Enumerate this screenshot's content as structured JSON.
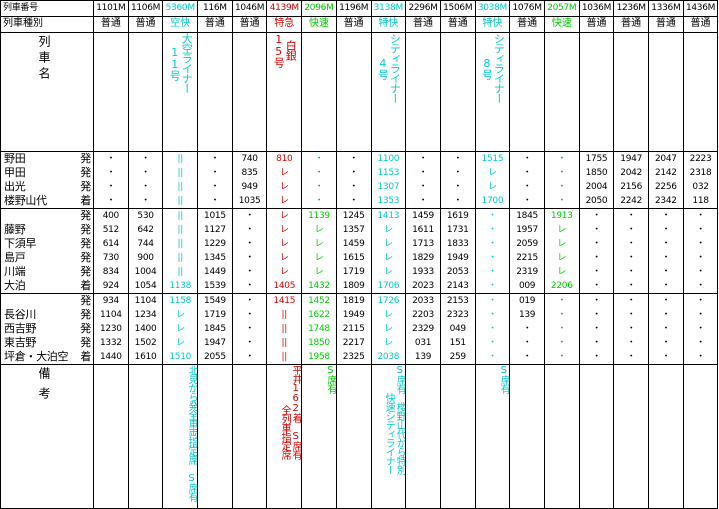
{
  "labels": {
    "train_number": "列車番号",
    "train_type": "列車種別",
    "train_name": "列車名",
    "remarks": "備考"
  },
  "colors": {
    "cyan": "#00cccc",
    "red": "#e00000",
    "green": "#00cc00",
    "black": "#000000"
  },
  "trains": [
    {
      "number": "1101M",
      "type": "普通",
      "name": "",
      "color": "black",
      "remarks": "",
      "b1": [
        "・",
        "・",
        "・",
        "・"
      ],
      "b2": [
        "400",
        "512",
        "614",
        "730",
        "834",
        "924"
      ],
      "b3": [
        "934",
        "1104",
        "1230",
        "1332",
        "1440"
      ]
    },
    {
      "number": "1106M",
      "type": "普通",
      "name": "",
      "color": "black",
      "remarks": "",
      "b1": [
        "・",
        "・",
        "・",
        "・"
      ],
      "b2": [
        "530",
        "642",
        "744",
        "900",
        "1004",
        "1054"
      ],
      "b3": [
        "1104",
        "1234",
        "1400",
        "1502",
        "1610"
      ]
    },
    {
      "number": "5360M",
      "type": "空快",
      "name": "大空ライナー\n11号",
      "color": "cyan",
      "remarks": "北見から発全車両指定席　S席有",
      "b1": [
        "||",
        "||",
        "||",
        "||"
      ],
      "b2": [
        "||",
        "||",
        "||",
        "||",
        "||",
        "1138"
      ],
      "b3": [
        "1158",
        "レ",
        "レ",
        "レ",
        "1510"
      ]
    },
    {
      "number": "116M",
      "type": "普通",
      "name": "",
      "color": "black",
      "remarks": "",
      "b1": [
        "・",
        "・",
        "・",
        "・"
      ],
      "b2": [
        "1015",
        "1127",
        "1229",
        "1345",
        "1449",
        "1539"
      ],
      "b3": [
        "1549",
        "1719",
        "1845",
        "1947",
        "2055"
      ]
    },
    {
      "number": "1046M",
      "type": "普通",
      "name": "",
      "color": "black",
      "remarks": "",
      "b1": [
        "740",
        "835",
        "949",
        "1035"
      ],
      "b2": [
        "・",
        "・",
        "・",
        "・",
        "・",
        "・"
      ],
      "b3": [
        "・",
        "・",
        "・",
        "・",
        "・"
      ]
    },
    {
      "number": "4139M",
      "type": "特急",
      "name": "白銀\n15号",
      "color": "red",
      "remarks": "平井162着　S席有\n全列車指定席",
      "b1": [
        "810",
        "レ",
        "レ",
        "レ"
      ],
      "b2": [
        "レ",
        "レ",
        "レ",
        "レ",
        "レ",
        "1405"
      ],
      "b3": [
        "1415",
        "||",
        "||",
        "||",
        "||"
      ]
    },
    {
      "number": "2096M",
      "type": "快速",
      "name": "",
      "color": "green",
      "remarks": "S席有",
      "b1": [
        "・",
        "・",
        "・",
        "・"
      ],
      "b2": [
        "1139",
        "レ",
        "レ",
        "レ",
        "レ",
        "1432"
      ],
      "b3": [
        "1452",
        "1622",
        "1748",
        "1850",
        "1958"
      ]
    },
    {
      "number": "1196M",
      "type": "普通",
      "name": "",
      "color": "black",
      "remarks": "",
      "b1": [
        "・",
        "・",
        "・",
        "・"
      ],
      "b2": [
        "1245",
        "1357",
        "1459",
        "1615",
        "1719",
        "1809"
      ],
      "b3": [
        "1819",
        "1949",
        "2115",
        "2217",
        "2325"
      ]
    },
    {
      "number": "3138M",
      "type": "特快",
      "name": "シティライナー\n4号",
      "color": "cyan",
      "remarks": "S席有　楼野山代から特別\n快速シティライナー",
      "b1": [
        "1100",
        "1153",
        "1307",
        "1353"
      ],
      "b2": [
        "1413",
        "レ",
        "レ",
        "レ",
        "レ",
        "1706"
      ],
      "b3": [
        "1726",
        "レ",
        "レ",
        "レ",
        "2038"
      ]
    },
    {
      "number": "2296M",
      "type": "普通",
      "name": "",
      "color": "black",
      "remarks": "",
      "b1": [
        "・",
        "・",
        "・",
        "・"
      ],
      "b2": [
        "1459",
        "1611",
        "1713",
        "1829",
        "1933",
        "2023"
      ],
      "b3": [
        "2033",
        "2203",
        "2329",
        "031",
        "139"
      ]
    },
    {
      "number": "1506M",
      "type": "普通",
      "name": "",
      "color": "black",
      "remarks": "",
      "b1": [
        "・",
        "・",
        "・",
        "・"
      ],
      "b2": [
        "1619",
        "1731",
        "1833",
        "1949",
        "2053",
        "2143"
      ],
      "b3": [
        "2153",
        "2323",
        "049",
        "151",
        "259"
      ]
    },
    {
      "number": "3038M",
      "type": "特快",
      "name": "シティライナー\n8号",
      "color": "cyan",
      "remarks": "S席有",
      "b1": [
        "1515",
        "レ",
        "レ",
        "1700"
      ],
      "b2": [
        "・",
        "・",
        "・",
        "・",
        "・",
        "・"
      ],
      "b3": [
        "・",
        "・",
        "・",
        "・",
        "・"
      ]
    },
    {
      "number": "1076M",
      "type": "普通",
      "name": "",
      "color": "black",
      "remarks": "",
      "b1": [
        "・",
        "・",
        "・",
        "・"
      ],
      "b2": [
        "1845",
        "1957",
        "2059",
        "2215",
        "2319",
        "009"
      ],
      "b3": [
        "019",
        "139",
        "・",
        "・",
        "・"
      ]
    },
    {
      "number": "2057M",
      "type": "快速",
      "name": "",
      "color": "green",
      "remarks": "",
      "b1": [
        "・",
        "・",
        "・",
        "・"
      ],
      "b2": [
        "1913",
        "レ",
        "レ",
        "レ",
        "レ",
        "2206"
      ],
      "b3": [
        "・",
        "・",
        "・",
        "・",
        "・"
      ]
    },
    {
      "number": "1036M",
      "type": "普通",
      "name": "",
      "color": "black",
      "remarks": "",
      "b1": [
        "1755",
        "1850",
        "2004",
        "2050"
      ],
      "b2": [
        "・",
        "・",
        "・",
        "・",
        "・",
        "・"
      ],
      "b3": [
        "・",
        "・",
        "・",
        "・",
        "・"
      ]
    },
    {
      "number": "1236M",
      "type": "普通",
      "name": "",
      "color": "black",
      "remarks": "",
      "b1": [
        "1947",
        "2042",
        "2156",
        "2242"
      ],
      "b2": [
        "・",
        "・",
        "・",
        "・",
        "・",
        "・"
      ],
      "b3": [
        "・",
        "・",
        "・",
        "・",
        "・"
      ]
    },
    {
      "number": "1336M",
      "type": "普通",
      "name": "",
      "color": "black",
      "remarks": "",
      "b1": [
        "2047",
        "2142",
        "2256",
        "2342"
      ],
      "b2": [
        "・",
        "・",
        "・",
        "・",
        "・",
        "・"
      ],
      "b3": [
        "・",
        "・",
        "・",
        "・",
        "・"
      ]
    },
    {
      "number": "1436M",
      "type": "普通",
      "name": "",
      "color": "black",
      "remarks": "",
      "b1": [
        "2223",
        "2318",
        "032",
        "118"
      ],
      "b2": [
        "・",
        "・",
        "・",
        "・",
        "・",
        "・"
      ],
      "b3": [
        "・",
        "・",
        "・",
        "・",
        "・"
      ]
    }
  ],
  "blocks": [
    {
      "stations": [
        {
          "name": "野田",
          "kind": "発"
        },
        {
          "name": "甲田",
          "kind": "発"
        },
        {
          "name": "出光",
          "kind": "発"
        },
        {
          "name": "楼野山代",
          "kind": "着"
        }
      ]
    },
    {
      "stations": [
        {
          "name": "",
          "kind": "発"
        },
        {
          "name": "藤野",
          "kind": "発"
        },
        {
          "name": "下須早",
          "kind": "発"
        },
        {
          "name": "島戸",
          "kind": "発"
        },
        {
          "name": "川端",
          "kind": "発"
        },
        {
          "name": "大泊",
          "kind": "着"
        }
      ]
    },
    {
      "stations": [
        {
          "name": "",
          "kind": "発"
        },
        {
          "name": "長谷川",
          "kind": "発"
        },
        {
          "name": "西吉野",
          "kind": "発"
        },
        {
          "name": "東吉野",
          "kind": "発"
        },
        {
          "name": "坪倉・大泊空",
          "kind": "着"
        }
      ]
    }
  ]
}
